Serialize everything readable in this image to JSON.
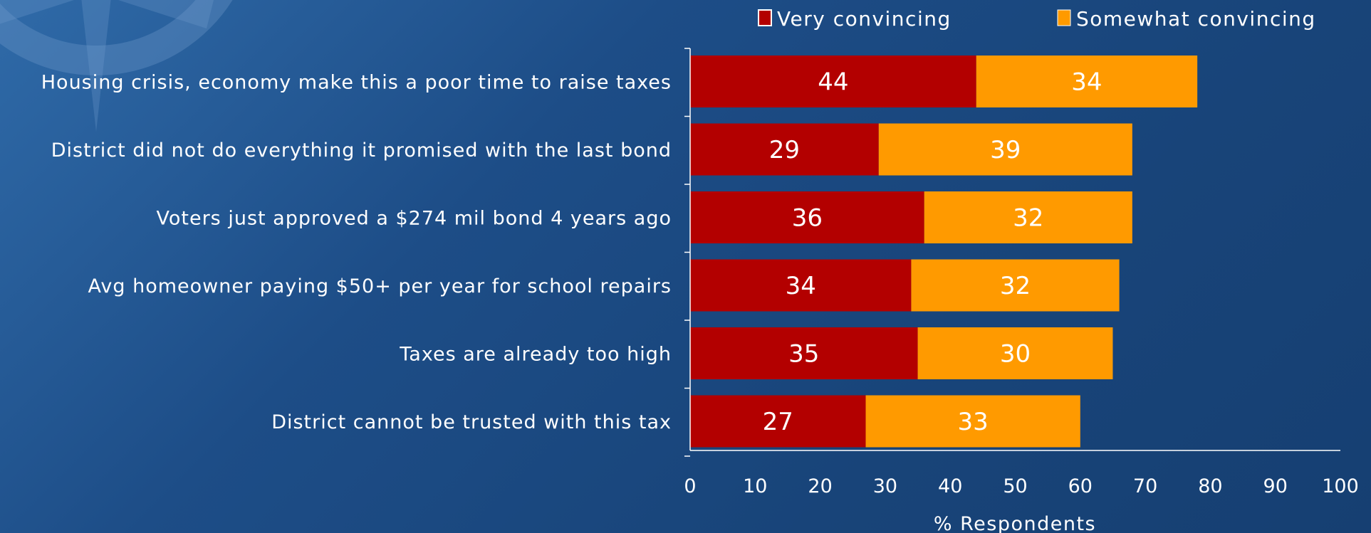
{
  "chart_data": {
    "type": "bar",
    "orientation": "horizontal",
    "stacked": true,
    "categories": [
      "Housing crisis, economy make this a poor time to raise taxes",
      "District did not do everything it promised with the last bond",
      "Voters just approved a $274 mil bond 4 years ago",
      "Avg homeowner paying $50+ per year for school repairs",
      "Taxes are already too high",
      "District cannot be trusted with this tax"
    ],
    "series": [
      {
        "name": "Very convincing",
        "color": "#b30000",
        "values": [
          44,
          29,
          36,
          34,
          35,
          27
        ]
      },
      {
        "name": "Somewhat convincing",
        "color": "#ff9a00",
        "values": [
          34,
          39,
          32,
          32,
          30,
          33
        ]
      }
    ],
    "xlabel": "% Respondents",
    "ylabel": "",
    "xlim": [
      0,
      100
    ],
    "xticks": [
      0,
      10,
      20,
      30,
      40,
      50,
      60,
      70,
      80,
      90,
      100
    ],
    "grid": false,
    "legend_position": "top-right",
    "colors": {
      "background": "#1b4a80",
      "text": "#ffffff",
      "axis": "#ffffff"
    }
  }
}
